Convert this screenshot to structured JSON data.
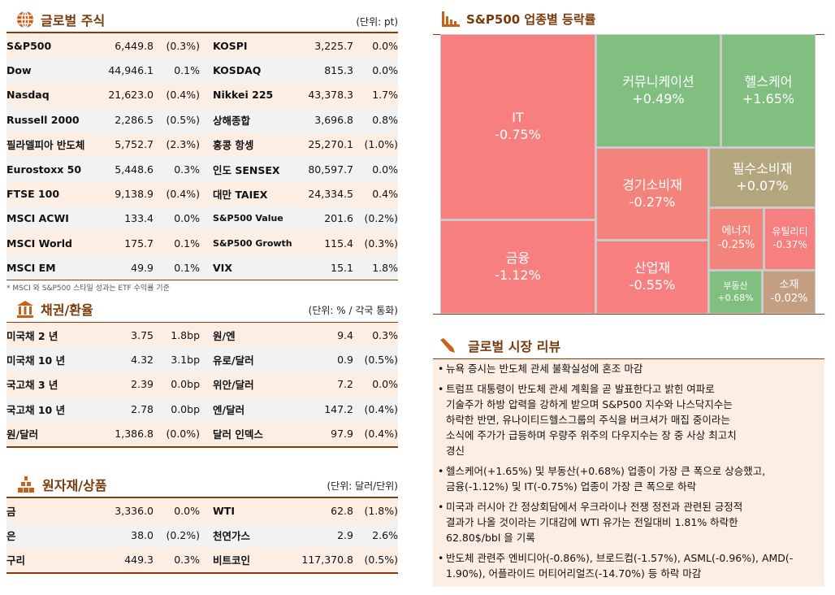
{
  "global_stocks": {
    "title": "글로벌 주식",
    "unit": "(단위: pt)",
    "icon": "globe-icon",
    "rows": [
      [
        "S&P500",
        "6,449.8",
        "(0.3%)",
        "KOSPI",
        "3,225.7",
        "0.0%"
      ],
      [
        "Dow",
        "44,946.1",
        "0.1%",
        "KOSDAQ",
        "815.3",
        "0.0%"
      ],
      [
        "Nasdaq",
        "21,623.0",
        "(0.4%)",
        "Nikkei 225",
        "43,378.3",
        "1.7%"
      ],
      [
        "Russell 2000",
        "2,286.5",
        "(0.5%)",
        "상해종합",
        "3,696.8",
        "0.8%"
      ],
      [
        "필라델피아 반도체",
        "5,752.7",
        "(2.3%)",
        "홍콩 항셍",
        "25,270.1",
        "(1.0%)"
      ],
      [
        "Eurostoxx 50",
        "5,448.6",
        "0.3%",
        "인도 SENSEX",
        "80,597.7",
        "0.0%"
      ],
      [
        "FTSE 100",
        "9,138.9",
        "(0.4%)",
        "대만 TAIEX",
        "24,334.5",
        "0.4%"
      ],
      [
        "MSCI ACWI",
        "133.4",
        "0.0%",
        "S&P500 Value",
        "201.6",
        "(0.2%)"
      ],
      [
        "MSCI World",
        "175.7",
        "0.1%",
        "S&P500 Growth",
        "115.4",
        "(0.3%)"
      ],
      [
        "MSCI EM",
        "49.9",
        "0.1%",
        "VIX",
        "15.1",
        "1.8%"
      ]
    ],
    "note": "* MSCI 와 S&P500 스타일 성과는 ETF 수익률 기준"
  },
  "bonds_fx": {
    "title": "채권/환율",
    "unit": "(단위: % / 각국 통화)",
    "icon": "bank-icon",
    "rows": [
      [
        "미국채 2 년",
        "3.75",
        "1.8bp",
        "원/엔",
        "9.4",
        "0.3%"
      ],
      [
        "미국채 10 년",
        "4.32",
        "3.1bp",
        "유로/달러",
        "0.9",
        "(0.5%)"
      ],
      [
        "국고채 3 년",
        "2.39",
        "0.0bp",
        "위안/달러",
        "7.2",
        "0.0%"
      ],
      [
        "국고채 10 년",
        "2.78",
        "0.0bp",
        "엔/달러",
        "147.2",
        "(0.4%)"
      ],
      [
        "원/달러",
        "1,386.8",
        "(0.0%)",
        "달러 인덱스",
        "97.9",
        "(0.4%)"
      ]
    ]
  },
  "commodities": {
    "title": "원자재/상품",
    "unit": "(단위: 달러/단위)",
    "icon": "gold-bars-icon",
    "rows": [
      [
        "금",
        "3,336.0",
        "0.0%",
        "WTI",
        "62.8",
        "(1.8%)"
      ],
      [
        "은",
        "38.0",
        "(0.2%)",
        "천연가스",
        "2.9",
        "2.6%"
      ],
      [
        "구리",
        "449.3",
        "0.3%",
        "비트코인",
        "117,370.8",
        "(0.5%)"
      ]
    ]
  },
  "sector_map": {
    "title": "S&P500 업종별 등락률",
    "icon": "bar-chart-icon",
    "colors": {
      "down": "#f77f7f",
      "mild_down": "#f4837c",
      "up": "#80bf80",
      "flat_up": "#b3a67e",
      "flat_down": "#c49e82"
    },
    "tiles": [
      {
        "name": "IT",
        "value": "-0.75%"
      },
      {
        "name": "금융",
        "value": "-1.12%"
      },
      {
        "name": "커뮤니케이션",
        "value": "+0.49%"
      },
      {
        "name": "헬스케어",
        "value": "+1.65%"
      },
      {
        "name": "경기소비재",
        "value": "-0.27%"
      },
      {
        "name": "필수소비재",
        "value": "+0.07%"
      },
      {
        "name": "산업재",
        "value": "-0.55%"
      },
      {
        "name": "에너지",
        "value": "-0.25%"
      },
      {
        "name": "유틸리티",
        "value": "-0.37%"
      },
      {
        "name": "부동산",
        "value": "+0.68%"
      },
      {
        "name": "소재",
        "value": "-0.02%"
      }
    ]
  },
  "review": {
    "title": "글로벌 시장 리뷰",
    "icon": "pen-icon",
    "bullets": [
      [
        "뉴욕 증시는 반도체 관세 불확실성에 혼조 마감"
      ],
      [
        "트럼프 대통령이 반도체 관세 계획을 곧 발표한다고 밝힌 여파로",
        "기술주가 하방 압력을 강하게 받으며 S&P500 지수와 나스닥지수는",
        "하락한 반면, 유나이티드헬스그룹의 주식을 버크셔가 매집 중이라는",
        "소식에 주가가 급등하며 우량주 위주의 다우지수는 장 중 사상 최고치",
        "경신"
      ],
      [
        "헬스케어(+1.65%) 및 부동산(+0.68%) 업종이 가장 큰 폭으로 상승했고,",
        "금융(-1.12%) 및 IT(-0.75%) 업종이 가장 큰 폭으로 하락"
      ],
      [
        "미국과 러시아 간 정상회담에서 우크라이나 전쟁 정전과 관련된 긍정적",
        "결과가 나올 것이라는 기대감에 WTI 유가는 전일대비 1.81% 하락한",
        "62.80$/bbl 을 기록"
      ],
      [
        "반도체 관련주 엔비디아(-0.86%), 브로드컴(-1.57%), ASML(-0.96%), AMD(-",
        "1.90%), 어플라이드 머티어리얼즈(-14.70%) 등 하락 마감"
      ]
    ]
  }
}
